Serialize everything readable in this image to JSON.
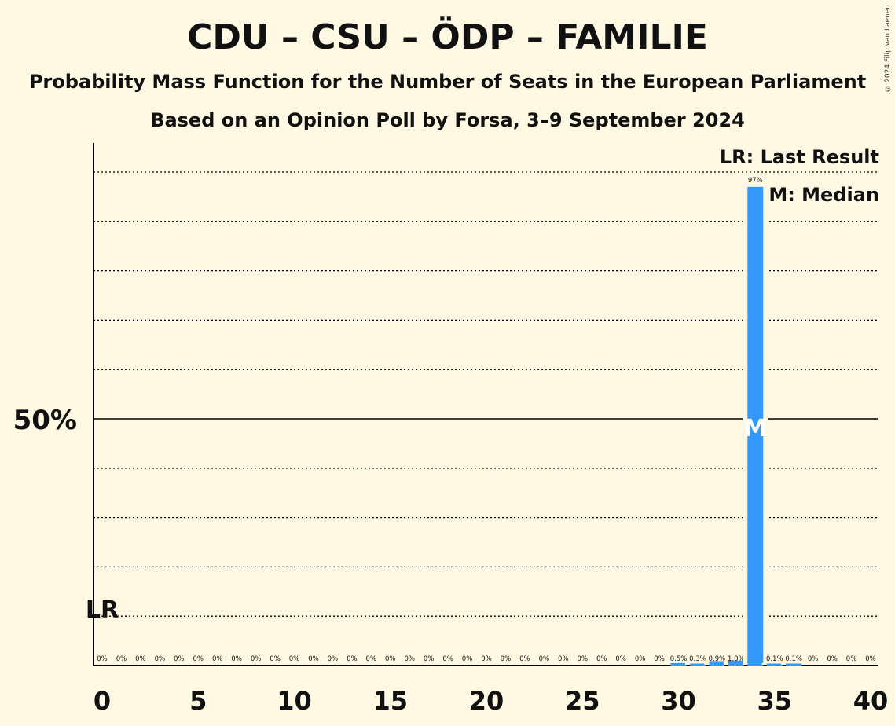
{
  "copyright": "© 2024 Filip van Laenen",
  "legend": {
    "lr": "LR: Last Result",
    "m": "M: Median"
  },
  "colors": {
    "background": "#FFF9E3",
    "bar": "#3399FF"
  },
  "chart_data": {
    "type": "bar",
    "title": "CDU – CSU – ÖDP – FAMILIE",
    "subtitle": "Probability Mass Function for the Number of Seats in the European Parliament",
    "subtitle2": "Based on an Opinion Poll by Forsa, 3–9 September 2024",
    "x": [
      0,
      1,
      2,
      3,
      4,
      5,
      6,
      7,
      8,
      9,
      10,
      11,
      12,
      13,
      14,
      15,
      16,
      17,
      18,
      19,
      20,
      21,
      22,
      23,
      24,
      25,
      26,
      27,
      28,
      29,
      30,
      31,
      32,
      33,
      34,
      35,
      36,
      37,
      38,
      39,
      40
    ],
    "values": [
      0,
      0,
      0,
      0,
      0,
      0,
      0,
      0,
      0,
      0,
      0,
      0,
      0,
      0,
      0,
      0,
      0,
      0,
      0,
      0,
      0,
      0,
      0,
      0,
      0,
      0,
      0,
      0,
      0,
      0,
      0.5,
      0.3,
      0.9,
      1.0,
      97,
      0.1,
      0.1,
      0,
      0,
      0,
      0
    ],
    "data_labels": [
      "0%",
      "0%",
      "0%",
      "0%",
      "0%",
      "0%",
      "0%",
      "0%",
      "0%",
      "0%",
      "0%",
      "0%",
      "0%",
      "0%",
      "0%",
      "0%",
      "0%",
      "0%",
      "0%",
      "0%",
      "0%",
      "0%",
      "0%",
      "0%",
      "0%",
      "0%",
      "0%",
      "0%",
      "0%",
      "0%",
      "0.5%",
      "0.3%",
      "0.9%",
      "1.0%",
      "97%",
      "0.1%",
      "0.1%",
      "0%",
      "0%",
      "0%",
      "0%"
    ],
    "x_ticks": [
      0,
      5,
      10,
      15,
      20,
      25,
      30,
      35,
      40
    ],
    "y_ticks": [
      {
        "value": 50,
        "label": "50%"
      }
    ],
    "ylim": [
      0,
      106
    ],
    "gridlines_every": 10,
    "last_result": {
      "seats": 0,
      "label": "LR"
    },
    "median": {
      "seats": 34,
      "label": "M"
    }
  }
}
